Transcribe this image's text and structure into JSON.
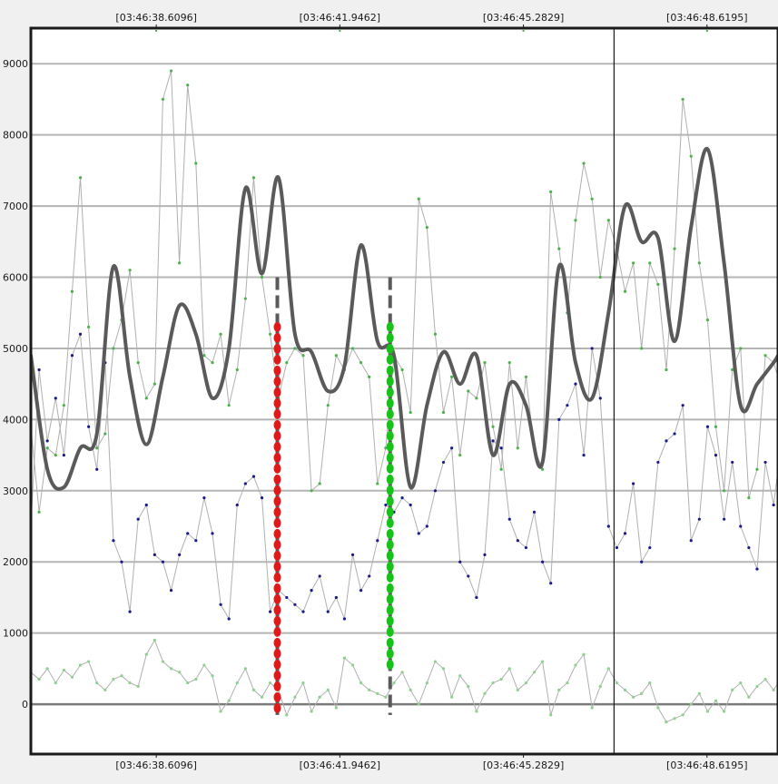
{
  "chart_data": {
    "type": "line",
    "title": "",
    "xlabel": "",
    "ylabel": "",
    "x_unit": "seconds",
    "x_start": "03:46:36.33",
    "x_tick_labels": [
      "[03:46:38.6096]",
      "[03:46:41.9462]",
      "[03:46:45.2829]",
      "[03:46:48.6195]"
    ],
    "x_tick_seconds": [
      2.2796,
      5.6162,
      8.9529,
      12.2895
    ],
    "xlim": [
      0.0,
      13.58
    ],
    "y_tick_labels": [
      "0",
      "1000",
      "2000",
      "3000",
      "4000",
      "5000",
      "6000",
      "7000",
      "8000",
      "9000"
    ],
    "y_ticks": [
      0,
      1000,
      2000,
      3000,
      4000,
      5000,
      6000,
      7000,
      8000,
      9000
    ],
    "ylim": [
      -700,
      9500
    ],
    "grid": true,
    "legend": "none",
    "cursor_line_x": 10.6,
    "colors": {
      "smooth": "#5a5a5a",
      "upper_signal": "#b0b0b0",
      "upper_markers": "#4cb24c",
      "middle_signal": "#b0b0b0",
      "middle_markers": "#1a1a8c",
      "lower_signal": "#b0b0b0",
      "lower_markers": "#8fcf8f",
      "red_marker": "#e01a1a",
      "green_marker": "#17c317",
      "dash_marker": "#5a5a5a",
      "grid": "#b5b5b5",
      "zero_line": "#7a7a7a"
    },
    "series": [
      {
        "key": "smooth",
        "style": "thick-line",
        "x": [
          0.0,
          0.3,
          0.6,
          0.9,
          1.2,
          1.5,
          1.8,
          2.1,
          2.4,
          2.7,
          3.0,
          3.3,
          3.6,
          3.9,
          4.2,
          4.5,
          4.8,
          5.1,
          5.4,
          5.7,
          6.0,
          6.3,
          6.6,
          6.9,
          7.2,
          7.5,
          7.8,
          8.1,
          8.4,
          8.7,
          9.0,
          9.3,
          9.6,
          9.9,
          10.2,
          10.5,
          10.8,
          11.1,
          11.4,
          11.7,
          12.0,
          12.3,
          12.6,
          12.9,
          13.2,
          13.5,
          13.58
        ],
        "values": [
          4900,
          3300,
          3050,
          3600,
          3800,
          6150,
          4600,
          3650,
          4600,
          5600,
          5200,
          4300,
          5000,
          7250,
          6050,
          7400,
          5200,
          4950,
          4400,
          4750,
          6450,
          5100,
          4900,
          3050,
          4200,
          4950,
          4500,
          4900,
          3500,
          4500,
          4200,
          3400,
          6150,
          4800,
          4300,
          5500,
          7000,
          6500,
          6550,
          5100,
          6700,
          7800,
          6200,
          4200,
          4500,
          4800,
          4900
        ]
      },
      {
        "key": "upper_signal",
        "style": "thin-line-markers",
        "marker": "upper_markers",
        "x": [
          0.0,
          0.15,
          0.3,
          0.45,
          0.6,
          0.75,
          0.9,
          1.05,
          1.2,
          1.35,
          1.5,
          1.65,
          1.8,
          1.95,
          2.1,
          2.25,
          2.4,
          2.55,
          2.7,
          2.85,
          3.0,
          3.15,
          3.3,
          3.45,
          3.6,
          3.75,
          3.9,
          4.05,
          4.2,
          4.35,
          4.5,
          4.65,
          4.8,
          4.95,
          5.1,
          5.25,
          5.4,
          5.55,
          5.7,
          5.85,
          6.0,
          6.15,
          6.3,
          6.45,
          6.6,
          6.75,
          6.9,
          7.05,
          7.2,
          7.35,
          7.5,
          7.65,
          7.8,
          7.95,
          8.1,
          8.25,
          8.4,
          8.55,
          8.7,
          8.85,
          9.0,
          9.15,
          9.3,
          9.45,
          9.6,
          9.75,
          9.9,
          10.05,
          10.2,
          10.35,
          10.5,
          10.65,
          10.8,
          10.95,
          11.1,
          11.25,
          11.4,
          11.55,
          11.7,
          11.85,
          12.0,
          12.15,
          12.3,
          12.45,
          12.6,
          12.75,
          12.9,
          13.05,
          13.2,
          13.35,
          13.5,
          13.58
        ],
        "values": [
          3900,
          2700,
          3600,
          3500,
          4200,
          5800,
          7400,
          5300,
          3600,
          3800,
          5000,
          5400,
          6100,
          4800,
          4300,
          4500,
          8500,
          8900,
          6200,
          8700,
          7600,
          4900,
          4800,
          5200,
          4200,
          4700,
          5700,
          7400,
          6000,
          5200,
          4300,
          4800,
          5000,
          4900,
          3000,
          3100,
          4200,
          4900,
          4700,
          5000,
          4800,
          4600,
          3100,
          3600,
          4900,
          4700,
          4100,
          7100,
          6700,
          5200,
          4100,
          4600,
          3500,
          4400,
          4300,
          4800,
          3900,
          3300,
          4800,
          3600,
          4600,
          3600,
          3300,
          7200,
          6400,
          5500,
          6800,
          7600,
          7100,
          6000,
          6800,
          6400,
          5800,
          6200,
          5000,
          6200,
          5900,
          4700,
          6400,
          8500,
          7700,
          6200,
          5400,
          3900,
          3000,
          4700,
          5000,
          2900,
          3300,
          4900,
          4800,
          4600
        ]
      },
      {
        "key": "middle_signal",
        "style": "thin-line-markers",
        "marker": "middle_markers",
        "x": [
          0.0,
          0.15,
          0.3,
          0.45,
          0.6,
          0.75,
          0.9,
          1.05,
          1.2,
          1.35,
          1.5,
          1.65,
          1.8,
          1.95,
          2.1,
          2.25,
          2.4,
          2.55,
          2.7,
          2.85,
          3.0,
          3.15,
          3.3,
          3.45,
          3.6,
          3.75,
          3.9,
          4.05,
          4.2,
          4.35,
          4.5,
          4.65,
          4.8,
          4.95,
          5.1,
          5.25,
          5.4,
          5.55,
          5.7,
          5.85,
          6.0,
          6.15,
          6.3,
          6.45,
          6.6,
          6.75,
          6.9,
          7.05,
          7.2,
          7.35,
          7.5,
          7.65,
          7.8,
          7.95,
          8.1,
          8.25,
          8.4,
          8.55,
          8.7,
          8.85,
          9.0,
          9.15,
          9.3,
          9.45,
          9.6,
          9.75,
          9.9,
          10.05,
          10.2,
          10.35,
          10.5,
          10.65,
          10.8,
          10.95,
          11.1,
          11.25,
          11.4,
          11.55,
          11.7,
          11.85,
          12.0,
          12.15,
          12.3,
          12.45,
          12.6,
          12.75,
          12.9,
          13.05,
          13.2,
          13.35,
          13.5,
          13.58
        ],
        "values": [
          2500,
          4700,
          3700,
          4300,
          3500,
          4900,
          5200,
          3900,
          3300,
          4800,
          2300,
          2000,
          1300,
          2600,
          2800,
          2100,
          2000,
          1600,
          2100,
          2400,
          2300,
          2900,
          2400,
          1400,
          1200,
          2800,
          3100,
          3200,
          2900,
          1300,
          1600,
          1500,
          1400,
          1300,
          1600,
          1800,
          1300,
          1500,
          1200,
          2100,
          1600,
          1800,
          2300,
          2800,
          2700,
          2900,
          2800,
          2400,
          2500,
          3000,
          3400,
          3600,
          2000,
          1800,
          1500,
          2100,
          3700,
          3600,
          2600,
          2300,
          2200,
          2700,
          2000,
          1700,
          4000,
          4200,
          4500,
          3500,
          5000,
          4300,
          2500,
          2200,
          2400,
          3100,
          2000,
          2200,
          3400,
          3700,
          3800,
          4200,
          2300,
          2600,
          3900,
          3500,
          2600,
          3400,
          2500,
          2200,
          1900,
          3400,
          2800,
          3300
        ]
      },
      {
        "key": "lower_signal",
        "style": "thin-line-markers",
        "marker": "lower_markers",
        "x": [
          0.0,
          0.15,
          0.3,
          0.45,
          0.6,
          0.75,
          0.9,
          1.05,
          1.2,
          1.35,
          1.5,
          1.65,
          1.8,
          1.95,
          2.1,
          2.25,
          2.4,
          2.55,
          2.7,
          2.85,
          3.0,
          3.15,
          3.3,
          3.45,
          3.6,
          3.75,
          3.9,
          4.05,
          4.2,
          4.35,
          4.5,
          4.65,
          4.8,
          4.95,
          5.1,
          5.25,
          5.4,
          5.55,
          5.7,
          5.85,
          6.0,
          6.15,
          6.3,
          6.45,
          6.6,
          6.75,
          6.9,
          7.05,
          7.2,
          7.35,
          7.5,
          7.65,
          7.8,
          7.95,
          8.1,
          8.25,
          8.4,
          8.55,
          8.7,
          8.85,
          9.0,
          9.15,
          9.3,
          9.45,
          9.6,
          9.75,
          9.9,
          10.05,
          10.2,
          10.35,
          10.5,
          10.65,
          10.8,
          10.95,
          11.1,
          11.25,
          11.4,
          11.55,
          11.7,
          11.85,
          12.0,
          12.15,
          12.3,
          12.45,
          12.6,
          12.75,
          12.9,
          13.05,
          13.2,
          13.35,
          13.5,
          13.58
        ],
        "values": [
          450,
          350,
          500,
          300,
          480,
          380,
          550,
          600,
          300,
          200,
          350,
          400,
          300,
          250,
          700,
          900,
          600,
          500,
          450,
          300,
          350,
          550,
          400,
          -100,
          50,
          300,
          500,
          200,
          100,
          300,
          200,
          -150,
          100,
          300,
          -100,
          100,
          200,
          -50,
          650,
          550,
          300,
          200,
          150,
          100,
          300,
          450,
          200,
          0,
          300,
          600,
          500,
          100,
          400,
          250,
          -100,
          150,
          300,
          350,
          500,
          200,
          300,
          450,
          600,
          -150,
          200,
          300,
          550,
          700,
          -50,
          250,
          500,
          300,
          200,
          100,
          150,
          300,
          -50,
          -250,
          -200,
          -150,
          0,
          150,
          -100,
          50,
          -100,
          200,
          300,
          100,
          250,
          350,
          200,
          300
        ]
      }
    ],
    "markers": [
      {
        "key": "red_dots",
        "color": "red_marker",
        "x": 4.48,
        "y_from": -150,
        "y_to": 5300
      },
      {
        "key": "green_dots",
        "color": "green_marker",
        "x": 6.53,
        "y_from": 500,
        "y_to": 5300
      },
      {
        "key": "dash_left",
        "color": "dash_marker",
        "x": 4.48,
        "y_from": -150,
        "y_to": 6000
      },
      {
        "key": "dash_right",
        "color": "dash_marker",
        "x": 6.53,
        "y_from": -150,
        "y_to": 6000
      }
    ]
  }
}
